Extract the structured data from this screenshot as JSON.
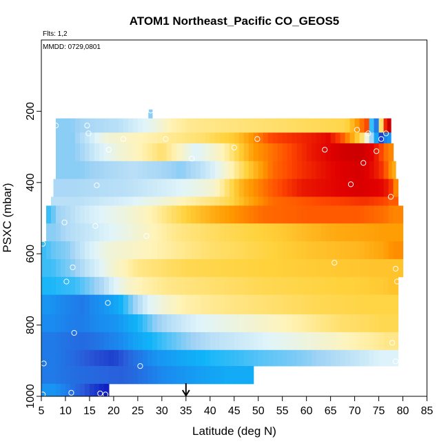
{
  "chart_data": {
    "type": "heatmap",
    "title": "ATOM1 Northeast_Pacific CO_GEOS5",
    "annotations": [
      "Flts: 1,2",
      "MMDD: 0729,0801"
    ],
    "xlabel": "Latitude (deg N)",
    "ylabel": "PSXC (mbar)",
    "xlim": [
      5,
      85
    ],
    "ylim": [
      1000,
      0
    ],
    "y_reversed": true,
    "x_ticks": [
      5,
      10,
      15,
      20,
      25,
      30,
      35,
      40,
      45,
      50,
      55,
      60,
      65,
      70,
      75,
      80,
      85
    ],
    "y_ticks": [
      200,
      400,
      600,
      800,
      1000
    ],
    "grid": false,
    "legend": "none",
    "value_scale": "relative CO (0 = low / blue, 1 = high / red)",
    "colormap": [
      "#1020c0",
      "#2a5ad8",
      "#1a8cf0",
      "#10b4f8",
      "#9fd2f5",
      "#e0f4fa",
      "#fff3b8",
      "#ffd23c",
      "#ff9800",
      "#ff4a00",
      "#e00000",
      "#b00000"
    ],
    "arrow_latitude": 35,
    "rows": [
      {
        "p": [
          195,
          220
        ],
        "segments": [
          [
            27.2,
            28.0,
            0.35
          ]
        ]
      },
      {
        "p": [
          220,
          260
        ],
        "segments": [
          [
            8,
            14,
            0.35
          ],
          [
            14,
            28,
            0.4
          ],
          [
            28,
            36,
            0.55
          ],
          [
            36,
            68,
            0.6
          ],
          [
            68,
            70,
            0.65
          ],
          [
            70,
            72,
            0.75
          ],
          [
            72,
            73,
            0.82
          ],
          [
            73,
            74,
            0.3
          ],
          [
            74,
            75,
            0.15
          ],
          [
            75,
            76,
            0.6
          ],
          [
            76,
            77.5,
            0.95
          ]
        ]
      },
      {
        "p": [
          260,
          290
        ],
        "segments": [
          [
            8,
            15,
            0.35
          ],
          [
            15,
            22,
            0.5
          ],
          [
            22,
            32,
            0.55
          ],
          [
            32,
            45,
            0.6
          ],
          [
            45,
            50,
            0.7
          ],
          [
            50,
            55,
            0.82
          ],
          [
            55,
            62,
            0.86
          ],
          [
            62,
            67,
            0.9
          ],
          [
            67,
            70,
            0.75
          ],
          [
            70,
            73,
            0.6
          ],
          [
            73,
            75,
            0.3
          ],
          [
            75,
            76,
            0.05
          ],
          [
            76,
            77.5,
            0.2
          ]
        ]
      },
      {
        "p": [
          290,
          340
        ],
        "segments": [
          [
            8,
            16,
            0.35
          ],
          [
            16,
            26,
            0.5
          ],
          [
            26,
            34,
            0.6
          ],
          [
            34,
            40,
            0.45
          ],
          [
            40,
            46,
            0.55
          ],
          [
            46,
            52,
            0.72
          ],
          [
            52,
            58,
            0.8
          ],
          [
            58,
            64,
            0.88
          ],
          [
            64,
            68,
            0.92
          ],
          [
            68,
            74,
            0.95
          ],
          [
            74,
            76,
            0.85
          ],
          [
            76,
            78,
            0.75
          ]
        ]
      },
      {
        "p": [
          340,
          390
        ],
        "segments": [
          [
            8,
            18,
            0.35
          ],
          [
            18,
            30,
            0.4
          ],
          [
            30,
            38,
            0.35
          ],
          [
            38,
            44,
            0.45
          ],
          [
            44,
            50,
            0.62
          ],
          [
            50,
            56,
            0.78
          ],
          [
            56,
            62,
            0.85
          ],
          [
            62,
            68,
            0.9
          ],
          [
            68,
            74,
            0.93
          ],
          [
            74,
            77,
            0.85
          ],
          [
            77,
            78.5,
            0.7
          ]
        ]
      },
      {
        "p": [
          390,
          440
        ],
        "segments": [
          [
            7.5,
            16,
            0.38
          ],
          [
            16,
            28,
            0.4
          ],
          [
            28,
            38,
            0.45
          ],
          [
            38,
            44,
            0.52
          ],
          [
            44,
            50,
            0.7
          ],
          [
            50,
            56,
            0.8
          ],
          [
            56,
            62,
            0.88
          ],
          [
            62,
            68,
            0.9
          ],
          [
            68,
            74,
            0.92
          ],
          [
            74,
            78,
            0.9
          ],
          [
            78,
            79,
            0.75
          ]
        ]
      },
      {
        "p": [
          440,
          465
        ],
        "segments": [
          [
            7,
            18,
            0.4
          ],
          [
            18,
            30,
            0.45
          ],
          [
            30,
            40,
            0.55
          ],
          [
            40,
            48,
            0.62
          ],
          [
            48,
            58,
            0.78
          ],
          [
            58,
            68,
            0.82
          ],
          [
            68,
            76,
            0.85
          ],
          [
            76,
            79,
            0.8
          ]
        ]
      },
      {
        "p": [
          465,
          515
        ],
        "segments": [
          [
            6,
            8,
            0.3
          ],
          [
            8,
            18,
            0.42
          ],
          [
            18,
            28,
            0.5
          ],
          [
            28,
            36,
            0.6
          ],
          [
            36,
            46,
            0.7
          ],
          [
            46,
            56,
            0.78
          ],
          [
            56,
            66,
            0.8
          ],
          [
            66,
            76,
            0.8
          ],
          [
            76,
            80,
            0.75
          ]
        ]
      },
      {
        "p": [
          515,
          565
        ],
        "segments": [
          [
            6,
            10,
            0.35
          ],
          [
            10,
            20,
            0.42
          ],
          [
            20,
            28,
            0.5
          ],
          [
            28,
            38,
            0.58
          ],
          [
            38,
            50,
            0.62
          ],
          [
            50,
            60,
            0.65
          ],
          [
            60,
            72,
            0.7
          ],
          [
            72,
            80,
            0.72
          ]
        ]
      },
      {
        "p": [
          565,
          615
        ],
        "segments": [
          [
            5,
            7,
            0.3
          ],
          [
            7,
            14,
            0.35
          ],
          [
            14,
            24,
            0.5
          ],
          [
            24,
            34,
            0.55
          ],
          [
            34,
            46,
            0.6
          ],
          [
            46,
            56,
            0.63
          ],
          [
            56,
            66,
            0.66
          ],
          [
            66,
            76,
            0.68
          ],
          [
            76,
            80,
            0.74
          ]
        ]
      },
      {
        "p": [
          615,
          665
        ],
        "segments": [
          [
            5,
            9,
            0.3
          ],
          [
            9,
            14,
            0.35
          ],
          [
            14,
            20,
            0.45
          ],
          [
            20,
            30,
            0.58
          ],
          [
            30,
            40,
            0.62
          ],
          [
            40,
            50,
            0.63
          ],
          [
            50,
            60,
            0.64
          ],
          [
            60,
            70,
            0.65
          ],
          [
            70,
            80,
            0.66
          ]
        ]
      },
      {
        "p": [
          665,
          715
        ],
        "segments": [
          [
            5,
            9,
            0.28
          ],
          [
            9,
            15,
            0.3
          ],
          [
            15,
            20,
            0.38
          ],
          [
            20,
            26,
            0.52
          ],
          [
            26,
            36,
            0.58
          ],
          [
            36,
            46,
            0.6
          ],
          [
            46,
            56,
            0.62
          ],
          [
            56,
            66,
            0.63
          ],
          [
            66,
            76,
            0.64
          ],
          [
            76,
            79,
            0.66
          ]
        ]
      },
      {
        "p": [
          715,
          770
        ],
        "segments": [
          [
            5,
            9,
            0.2
          ],
          [
            9,
            18,
            0.15
          ],
          [
            18,
            24,
            0.25
          ],
          [
            24,
            30,
            0.45
          ],
          [
            30,
            38,
            0.55
          ],
          [
            38,
            48,
            0.58
          ],
          [
            48,
            58,
            0.6
          ],
          [
            58,
            68,
            0.62
          ],
          [
            68,
            79,
            0.63
          ]
        ]
      },
      {
        "p": [
          770,
          820
        ],
        "segments": [
          [
            5,
            10,
            0.18
          ],
          [
            10,
            16,
            0.15
          ],
          [
            16,
            25,
            0.2
          ],
          [
            25,
            32,
            0.35
          ],
          [
            32,
            42,
            0.45
          ],
          [
            42,
            52,
            0.5
          ],
          [
            52,
            62,
            0.55
          ],
          [
            62,
            72,
            0.6
          ],
          [
            72,
            79,
            0.62
          ]
        ]
      },
      {
        "p": [
          820,
          870
        ],
        "segments": [
          [
            5,
            10,
            0.15
          ],
          [
            10,
            18,
            0.12
          ],
          [
            18,
            25,
            0.18
          ],
          [
            25,
            35,
            0.3
          ],
          [
            35,
            46,
            0.4
          ],
          [
            46,
            56,
            0.45
          ],
          [
            56,
            66,
            0.5
          ],
          [
            66,
            74,
            0.55
          ],
          [
            74,
            79,
            0.58
          ]
        ]
      },
      {
        "p": [
          870,
          915
        ],
        "segments": [
          [
            5,
            11,
            0.15
          ],
          [
            11,
            16,
            0.1
          ],
          [
            16,
            24,
            0.05
          ],
          [
            24,
            34,
            0.2
          ],
          [
            34,
            46,
            0.28
          ],
          [
            46,
            56,
            0.32
          ],
          [
            56,
            64,
            0.35
          ],
          [
            64,
            72,
            0.4
          ],
          [
            72,
            79,
            0.45
          ]
        ]
      },
      {
        "p": [
          915,
          965
        ],
        "segments": [
          [
            5,
            10,
            0.15
          ],
          [
            10,
            18,
            0.12
          ],
          [
            18,
            25,
            0.1
          ],
          [
            25,
            30,
            0.15
          ],
          [
            30,
            38,
            0.2
          ],
          [
            38,
            49,
            0.25
          ]
        ]
      },
      {
        "p": [
          965,
          1000
        ],
        "segments": [
          [
            5,
            10,
            0.2
          ],
          [
            10,
            14,
            0.12
          ],
          [
            14,
            17,
            0.05
          ],
          [
            17,
            19,
            0.0
          ]
        ]
      }
    ],
    "samples": [
      {
        "x": 27.7,
        "y": 198
      },
      {
        "x": 8.0,
        "y": 240
      },
      {
        "x": 14.5,
        "y": 240
      },
      {
        "x": 14.8,
        "y": 262
      },
      {
        "x": 22.0,
        "y": 278
      },
      {
        "x": 30.8,
        "y": 278
      },
      {
        "x": 19.0,
        "y": 308
      },
      {
        "x": 36.2,
        "y": 333
      },
      {
        "x": 45.0,
        "y": 302
      },
      {
        "x": 49.8,
        "y": 278
      },
      {
        "x": 63.8,
        "y": 308
      },
      {
        "x": 70.5,
        "y": 252
      },
      {
        "x": 72.8,
        "y": 262
      },
      {
        "x": 74.5,
        "y": 312
      },
      {
        "x": 71.8,
        "y": 345
      },
      {
        "x": 75.5,
        "y": 278
      },
      {
        "x": 76.5,
        "y": 262
      },
      {
        "x": 16.5,
        "y": 408
      },
      {
        "x": 69.2,
        "y": 405
      },
      {
        "x": 77.5,
        "y": 440
      },
      {
        "x": 9.8,
        "y": 512
      },
      {
        "x": 16.2,
        "y": 522
      },
      {
        "x": 26.8,
        "y": 550
      },
      {
        "x": 5.3,
        "y": 572
      },
      {
        "x": 11.5,
        "y": 638
      },
      {
        "x": 65.8,
        "y": 625
      },
      {
        "x": 78.5,
        "y": 642
      },
      {
        "x": 10.2,
        "y": 678
      },
      {
        "x": 78.8,
        "y": 678
      },
      {
        "x": 18.8,
        "y": 738
      },
      {
        "x": 11.8,
        "y": 822
      },
      {
        "x": 77.8,
        "y": 850
      },
      {
        "x": 5.5,
        "y": 908
      },
      {
        "x": 25.5,
        "y": 915
      },
      {
        "x": 78.5,
        "y": 902
      },
      {
        "x": 5.3,
        "y": 995
      },
      {
        "x": 11.2,
        "y": 990
      },
      {
        "x": 17.2,
        "y": 992
      },
      {
        "x": 18.3,
        "y": 995
      }
    ]
  }
}
